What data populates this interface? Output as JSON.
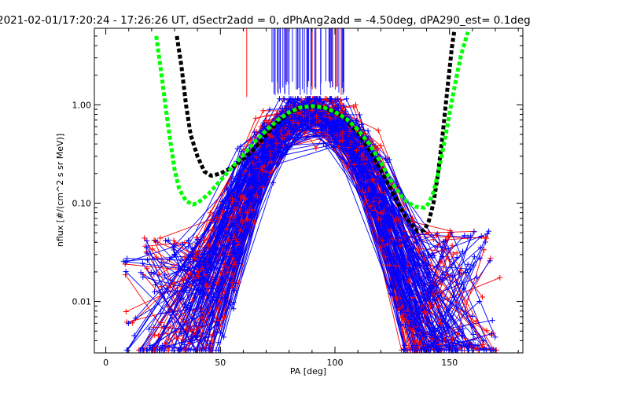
{
  "chart_data": {
    "type": "line",
    "title": "2021-02-01/17:20:24 - 17:26:26 UT, dSectr2add = 0, dPhAng2add = -4.50deg, dPA290_est=   0.1deg",
    "xlabel": "PA [deg]",
    "ylabel": "nflux [#/(cm^2 s sr MeV)]",
    "xlim": [
      -5,
      182
    ],
    "ylim": [
      0.003,
      6.0
    ],
    "yscale": "log",
    "xticks": [
      0,
      50,
      100,
      150
    ],
    "xtick_labels": [
      "0",
      "50",
      "100",
      "150"
    ],
    "yticks": [
      0.01,
      0.1,
      1.0
    ],
    "ytick_labels": [
      "0.01",
      "0.10",
      "1.00"
    ],
    "grid": false,
    "legend": "none",
    "colors": {
      "red": "#ff0000",
      "blue": "#0000ff",
      "black": "#000000",
      "green": "#00ff00",
      "axes": "#000000",
      "background": "#ffffff"
    },
    "series": [
      {
        "color": "#000000",
        "style": "thick-dashed",
        "x": [
          31,
          33,
          35,
          37,
          40,
          43,
          46,
          50,
          55,
          60,
          65,
          70,
          75,
          80,
          85,
          90,
          95,
          100,
          105,
          110,
          115,
          120,
          125,
          130,
          133,
          136,
          139,
          141,
          143,
          145,
          147,
          149,
          151,
          152
        ],
        "y": [
          5.0,
          2.5,
          1.0,
          0.5,
          0.3,
          0.21,
          0.19,
          0.2,
          0.23,
          0.28,
          0.36,
          0.5,
          0.66,
          0.82,
          0.94,
          0.97,
          0.93,
          0.84,
          0.7,
          0.52,
          0.35,
          0.22,
          0.13,
          0.078,
          0.062,
          0.052,
          0.053,
          0.066,
          0.1,
          0.2,
          0.5,
          1.4,
          3.8,
          5.5
        ]
      },
      {
        "color": "#00ff00",
        "style": "thick-dashed",
        "x": [
          22,
          24,
          26,
          28,
          30,
          32,
          35,
          38,
          40,
          45,
          50,
          55,
          60,
          65,
          70,
          75,
          80,
          85,
          90,
          95,
          100,
          105,
          110,
          115,
          120,
          125,
          130,
          135,
          139,
          141,
          143,
          145,
          147,
          149,
          151,
          153,
          155,
          158
        ],
        "y": [
          5.0,
          2.3,
          1.0,
          0.45,
          0.22,
          0.14,
          0.105,
          0.097,
          0.1,
          0.125,
          0.17,
          0.23,
          0.31,
          0.42,
          0.55,
          0.7,
          0.84,
          0.94,
          0.97,
          0.94,
          0.85,
          0.72,
          0.56,
          0.4,
          0.26,
          0.16,
          0.11,
          0.092,
          0.09,
          0.1,
          0.13,
          0.2,
          0.34,
          0.6,
          1.1,
          1.9,
          3.2,
          5.5
        ]
      }
    ]
  }
}
